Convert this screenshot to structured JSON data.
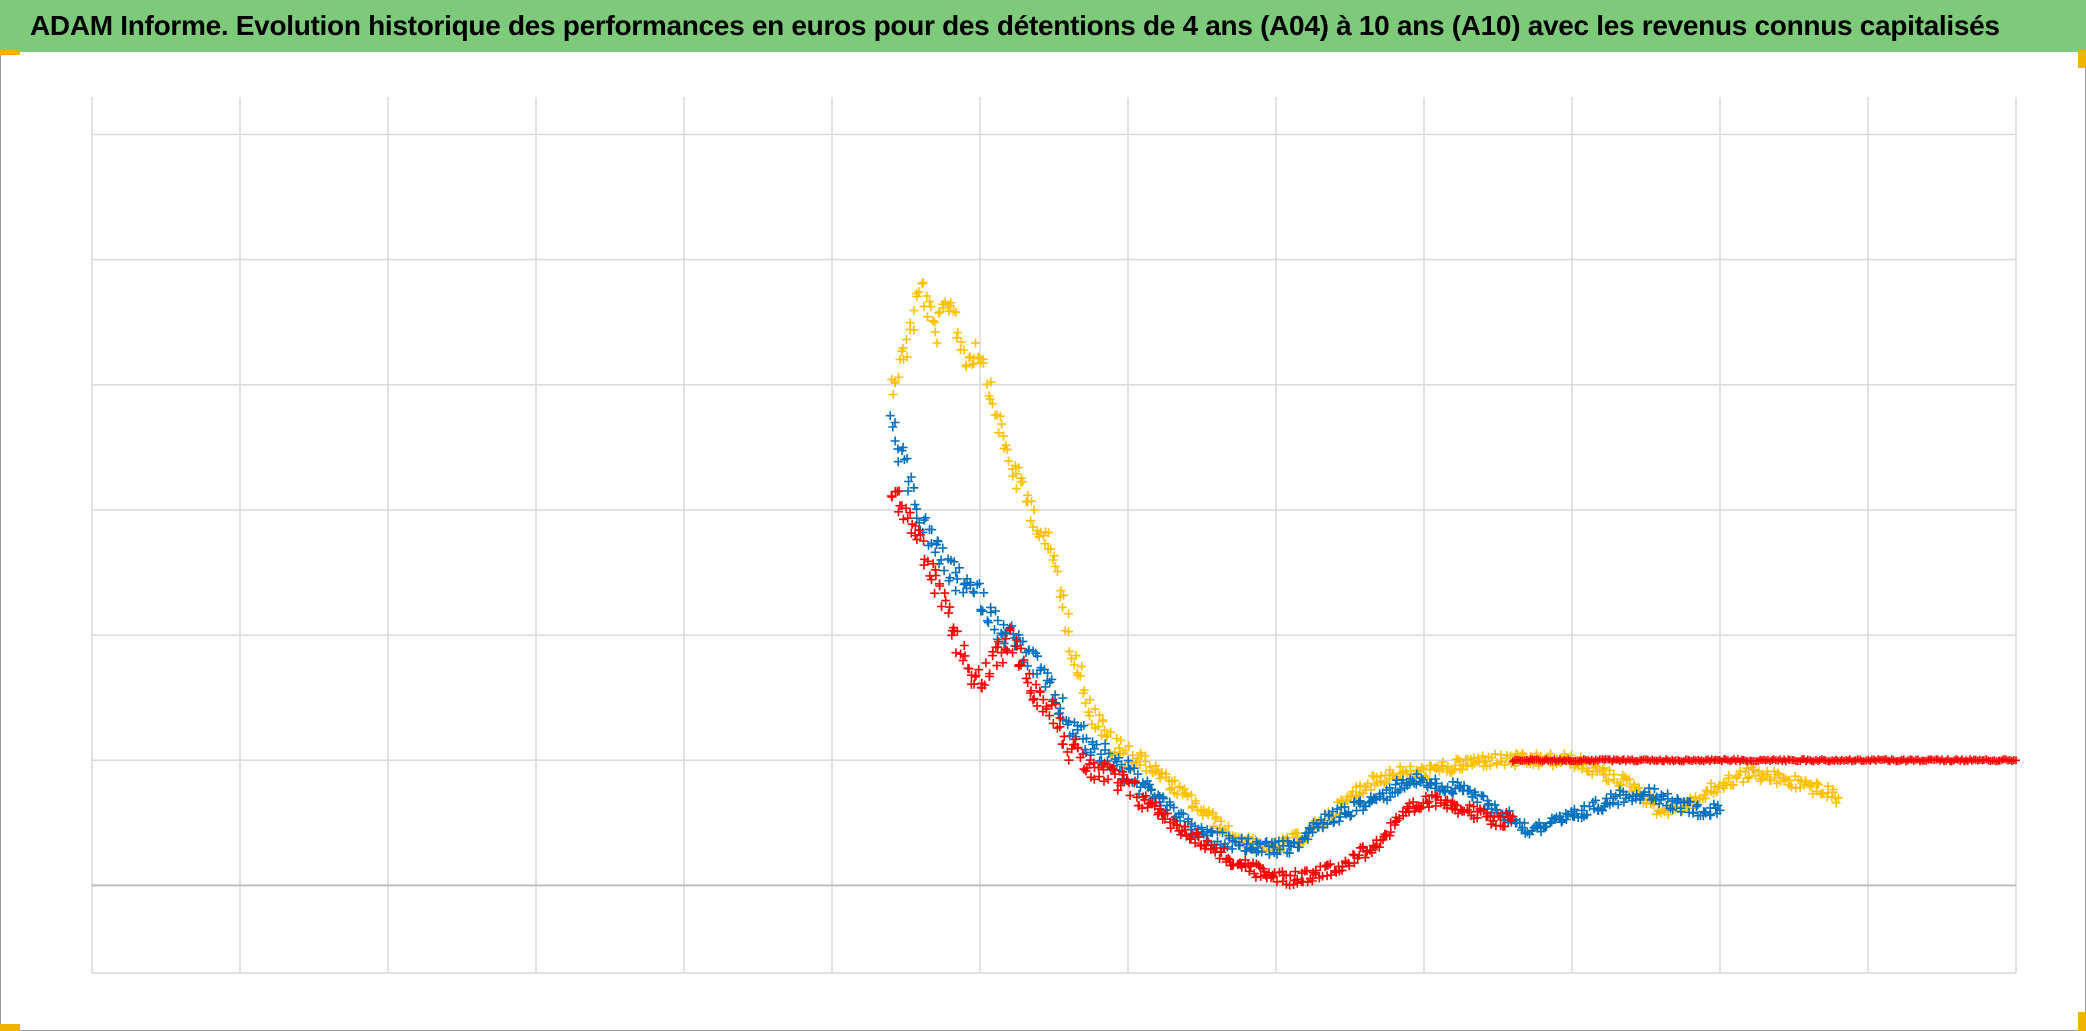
{
  "title": "ADAM Informe. Evolution historique des performances en euros pour des détentions de 4 ans (A04) à 10 ans (A10) avec les revenus connus capitalisés",
  "colors": {
    "title_background": "#7dca7b",
    "corner_marks": "#f0b400",
    "grid": "#d9d9d9",
    "axis_line": "#bfbfbf"
  },
  "chart_data": {
    "type": "scatter",
    "marker": "plus",
    "title": "ADAM Informe. Evolution historique des performances en euros pour des détentions de 4 ans (A04) à 10 ans (A10) avec les revenus connus capitalisés",
    "xlabel": "",
    "ylabel": "",
    "xlim": [
      0,
      13
    ],
    "ylim": [
      -0.7,
      6.3
    ],
    "zero_line": 0,
    "x_tick_labels_shown": false,
    "y_tick_labels_shown": false,
    "grid": true,
    "legend": "none",
    "series": [
      {
        "color": "#ffc000",
        "points": [
          [
            5.4,
            4.0
          ],
          [
            5.5,
            4.3
          ],
          [
            5.6,
            4.8
          ],
          [
            5.7,
            4.4
          ],
          [
            5.8,
            4.7
          ],
          [
            5.9,
            4.2
          ],
          [
            6.0,
            4.3
          ],
          [
            6.1,
            3.8
          ],
          [
            6.2,
            3.4
          ],
          [
            6.35,
            3.0
          ],
          [
            6.5,
            2.6
          ],
          [
            6.6,
            2.0
          ],
          [
            6.75,
            1.4
          ],
          [
            6.9,
            1.1
          ],
          [
            7.1,
            1.0
          ],
          [
            7.3,
            0.8
          ],
          [
            7.5,
            0.6
          ],
          [
            7.7,
            0.4
          ],
          [
            7.9,
            0.3
          ],
          [
            8.0,
            0.3
          ],
          [
            8.2,
            0.4
          ],
          [
            8.4,
            0.6
          ],
          [
            8.6,
            0.8
          ],
          [
            8.8,
            0.9
          ],
          [
            9.0,
            0.9
          ],
          [
            9.2,
            0.95
          ],
          [
            9.4,
            1.0
          ],
          [
            9.6,
            1.0
          ],
          [
            9.8,
            1.0
          ],
          [
            10.0,
            1.0
          ],
          [
            10.2,
            0.9
          ],
          [
            10.4,
            0.8
          ],
          [
            10.6,
            0.6
          ],
          [
            10.8,
            0.65
          ],
          [
            11.0,
            0.8
          ],
          [
            11.2,
            0.9
          ],
          [
            11.4,
            0.85
          ],
          [
            11.6,
            0.8
          ],
          [
            11.8,
            0.7
          ]
        ]
      },
      {
        "color": "#0070c0",
        "points": [
          [
            5.4,
            3.7
          ],
          [
            5.5,
            3.3
          ],
          [
            5.6,
            2.9
          ],
          [
            5.7,
            2.7
          ],
          [
            5.8,
            2.5
          ],
          [
            5.9,
            2.4
          ],
          [
            6.0,
            2.3
          ],
          [
            6.1,
            2.1
          ],
          [
            6.2,
            2.0
          ],
          [
            6.35,
            1.8
          ],
          [
            6.5,
            1.5
          ],
          [
            6.6,
            1.3
          ],
          [
            6.75,
            1.1
          ],
          [
            6.9,
            1.0
          ],
          [
            7.1,
            0.8
          ],
          [
            7.3,
            0.6
          ],
          [
            7.5,
            0.4
          ],
          [
            7.7,
            0.35
          ],
          [
            7.9,
            0.3
          ],
          [
            8.1,
            0.3
          ],
          [
            8.3,
            0.5
          ],
          [
            8.5,
            0.6
          ],
          [
            8.7,
            0.7
          ],
          [
            8.9,
            0.85
          ],
          [
            9.1,
            0.8
          ],
          [
            9.3,
            0.75
          ],
          [
            9.5,
            0.6
          ],
          [
            9.7,
            0.45
          ],
          [
            9.9,
            0.5
          ],
          [
            10.1,
            0.6
          ],
          [
            10.3,
            0.7
          ],
          [
            10.5,
            0.75
          ],
          [
            10.7,
            0.65
          ],
          [
            10.9,
            0.6
          ],
          [
            11.0,
            0.6
          ]
        ]
      },
      {
        "color": "#ff0000",
        "points": [
          [
            5.4,
            3.2
          ],
          [
            5.5,
            3.0
          ],
          [
            5.6,
            2.7
          ],
          [
            5.7,
            2.4
          ],
          [
            5.8,
            2.1
          ],
          [
            5.9,
            1.8
          ],
          [
            6.0,
            1.6
          ],
          [
            6.1,
            1.8
          ],
          [
            6.2,
            2.0
          ],
          [
            6.35,
            1.6
          ],
          [
            6.5,
            1.4
          ],
          [
            6.6,
            1.1
          ],
          [
            6.75,
            0.95
          ],
          [
            6.9,
            0.85
          ],
          [
            7.1,
            0.7
          ],
          [
            7.3,
            0.5
          ],
          [
            7.5,
            0.35
          ],
          [
            7.7,
            0.2
          ],
          [
            7.9,
            0.1
          ],
          [
            8.1,
            0.05
          ],
          [
            8.3,
            0.1
          ],
          [
            8.5,
            0.2
          ],
          [
            8.7,
            0.35
          ],
          [
            8.9,
            0.6
          ],
          [
            9.1,
            0.7
          ],
          [
            9.3,
            0.6
          ],
          [
            9.5,
            0.5
          ],
          [
            9.6,
            0.55
          ]
        ]
      },
      {
        "color": "#ff0000",
        "points": [
          [
            9.6,
            1.0
          ],
          [
            10.0,
            1.0
          ],
          [
            10.5,
            1.0
          ],
          [
            11.0,
            1.0
          ],
          [
            11.5,
            1.0
          ],
          [
            12.0,
            1.0
          ],
          [
            12.5,
            1.0
          ],
          [
            13.0,
            1.0
          ]
        ]
      }
    ]
  }
}
